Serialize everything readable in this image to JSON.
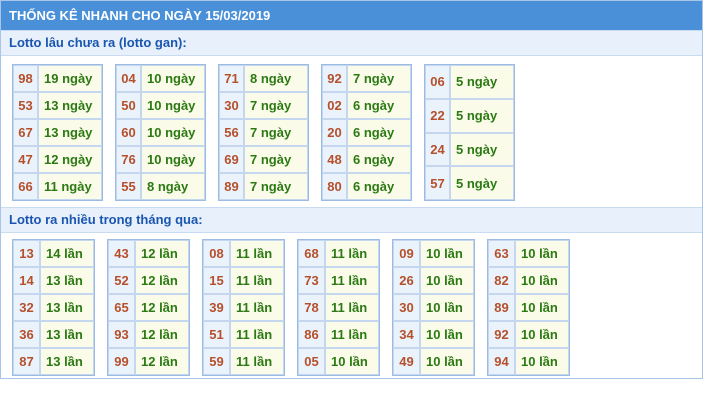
{
  "header": {
    "title": "THỐNG KÊ NHANH CHO NGÀY 15/03/2019"
  },
  "gan": {
    "title": "Lotto lâu chưa ra (lotto gan):",
    "columns": [
      [
        {
          "num": "98",
          "val": "19 ngày"
        },
        {
          "num": "53",
          "val": "13 ngày"
        },
        {
          "num": "67",
          "val": "13 ngày"
        },
        {
          "num": "47",
          "val": "12 ngày"
        },
        {
          "num": "66",
          "val": "11 ngày"
        }
      ],
      [
        {
          "num": "04",
          "val": "10 ngày"
        },
        {
          "num": "50",
          "val": "10 ngày"
        },
        {
          "num": "60",
          "val": "10 ngày"
        },
        {
          "num": "76",
          "val": "10 ngày"
        },
        {
          "num": "55",
          "val": "8 ngày"
        }
      ],
      [
        {
          "num": "71",
          "val": "8 ngày"
        },
        {
          "num": "30",
          "val": "7 ngày"
        },
        {
          "num": "56",
          "val": "7 ngày"
        },
        {
          "num": "69",
          "val": "7 ngày"
        },
        {
          "num": "89",
          "val": "7 ngày"
        }
      ],
      [
        {
          "num": "92",
          "val": "7 ngày"
        },
        {
          "num": "02",
          "val": "6 ngày"
        },
        {
          "num": "20",
          "val": "6 ngày"
        },
        {
          "num": "48",
          "val": "6 ngày"
        },
        {
          "num": "80",
          "val": "6 ngày"
        }
      ],
      [
        {
          "num": "06",
          "val": "5 ngày"
        },
        {
          "num": "22",
          "val": "5 ngày"
        },
        {
          "num": "24",
          "val": "5 ngày"
        },
        {
          "num": "57",
          "val": "5 ngày"
        }
      ]
    ]
  },
  "nhieu": {
    "title": "Lotto ra nhiều trong tháng qua:",
    "columns": [
      [
        {
          "num": "13",
          "val": "14 lần"
        },
        {
          "num": "14",
          "val": "13 lần"
        },
        {
          "num": "32",
          "val": "13 lần"
        },
        {
          "num": "36",
          "val": "13 lần"
        },
        {
          "num": "87",
          "val": "13 lần"
        }
      ],
      [
        {
          "num": "43",
          "val": "12 lần"
        },
        {
          "num": "52",
          "val": "12 lần"
        },
        {
          "num": "65",
          "val": "12 lần"
        },
        {
          "num": "93",
          "val": "12 lần"
        },
        {
          "num": "99",
          "val": "12 lần"
        }
      ],
      [
        {
          "num": "08",
          "val": "11 lần"
        },
        {
          "num": "15",
          "val": "11 lần"
        },
        {
          "num": "39",
          "val": "11 lần"
        },
        {
          "num": "51",
          "val": "11 lần"
        },
        {
          "num": "59",
          "val": "11 lần"
        }
      ],
      [
        {
          "num": "68",
          "val": "11 lần"
        },
        {
          "num": "73",
          "val": "11 lần"
        },
        {
          "num": "78",
          "val": "11 lần"
        },
        {
          "num": "86",
          "val": "11 lần"
        },
        {
          "num": "05",
          "val": "10 lần"
        }
      ],
      [
        {
          "num": "09",
          "val": "10 lần"
        },
        {
          "num": "26",
          "val": "10 lần"
        },
        {
          "num": "30",
          "val": "10 lần"
        },
        {
          "num": "34",
          "val": "10 lần"
        },
        {
          "num": "49",
          "val": "10 lần"
        }
      ],
      [
        {
          "num": "63",
          "val": "10 lần"
        },
        {
          "num": "82",
          "val": "10 lần"
        },
        {
          "num": "89",
          "val": "10 lần"
        },
        {
          "num": "92",
          "val": "10 lần"
        },
        {
          "num": "94",
          "val": "10 lần"
        }
      ]
    ]
  },
  "colors": {
    "header_bg": "#4a90d9",
    "section_bg": "#e7f0fb",
    "section_text": "#1a56b0",
    "number_text": "#b5502b",
    "count_text": "#2b7a12",
    "number_cell_bg": "#eaf2fc",
    "count_cell_bg": "#fbfbea"
  }
}
